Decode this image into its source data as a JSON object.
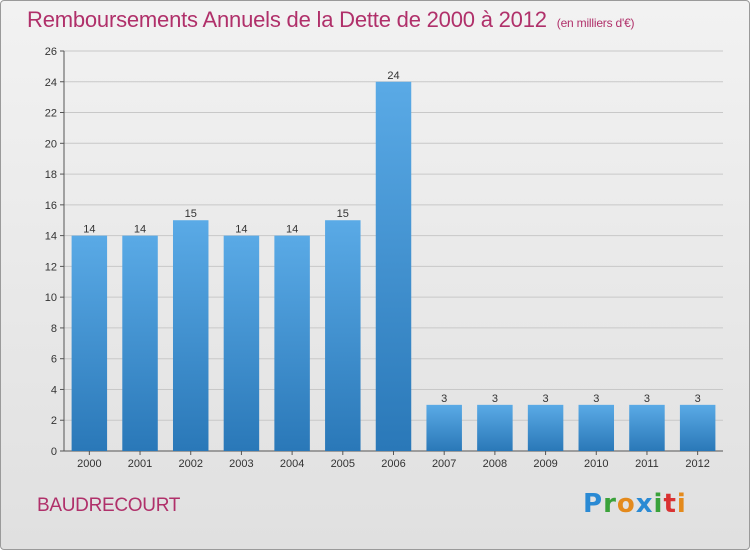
{
  "title": "Remboursements Annuels de la Dette de 2000 à 2012",
  "subtitle": "(en milliers d'€)",
  "commune": "BAUDRECOURT",
  "logo": {
    "text": "Proxiti",
    "letters": [
      {
        "char": "P",
        "color": "#2a8ad4"
      },
      {
        "char": "r",
        "color": "#3aa23a"
      },
      {
        "char": "o",
        "color": "#e48a1c"
      },
      {
        "char": "x",
        "color": "#2a8ad4"
      },
      {
        "char": "i",
        "color": "#3aa23a"
      },
      {
        "char": "t",
        "color": "#d93232"
      },
      {
        "char": "i",
        "color": "#e48a1c"
      }
    ]
  },
  "colors": {
    "bar_light": "#5aaae6",
    "bar_dark": "#2a78b8",
    "title": "#b0306a",
    "grid": "#c8c8c8"
  },
  "chart_data": {
    "type": "bar",
    "categories": [
      "2000",
      "2001",
      "2002",
      "2003",
      "2004",
      "2005",
      "2006",
      "2007",
      "2008",
      "2009",
      "2010",
      "2011",
      "2012"
    ],
    "values": [
      14,
      14,
      15,
      14,
      14,
      15,
      24,
      3,
      3,
      3,
      3,
      3,
      3
    ],
    "ylim": [
      0,
      26
    ],
    "yticks": [
      0,
      2,
      4,
      6,
      8,
      10,
      12,
      14,
      16,
      18,
      20,
      22,
      24,
      26
    ],
    "grid": true,
    "data_labels": true
  }
}
